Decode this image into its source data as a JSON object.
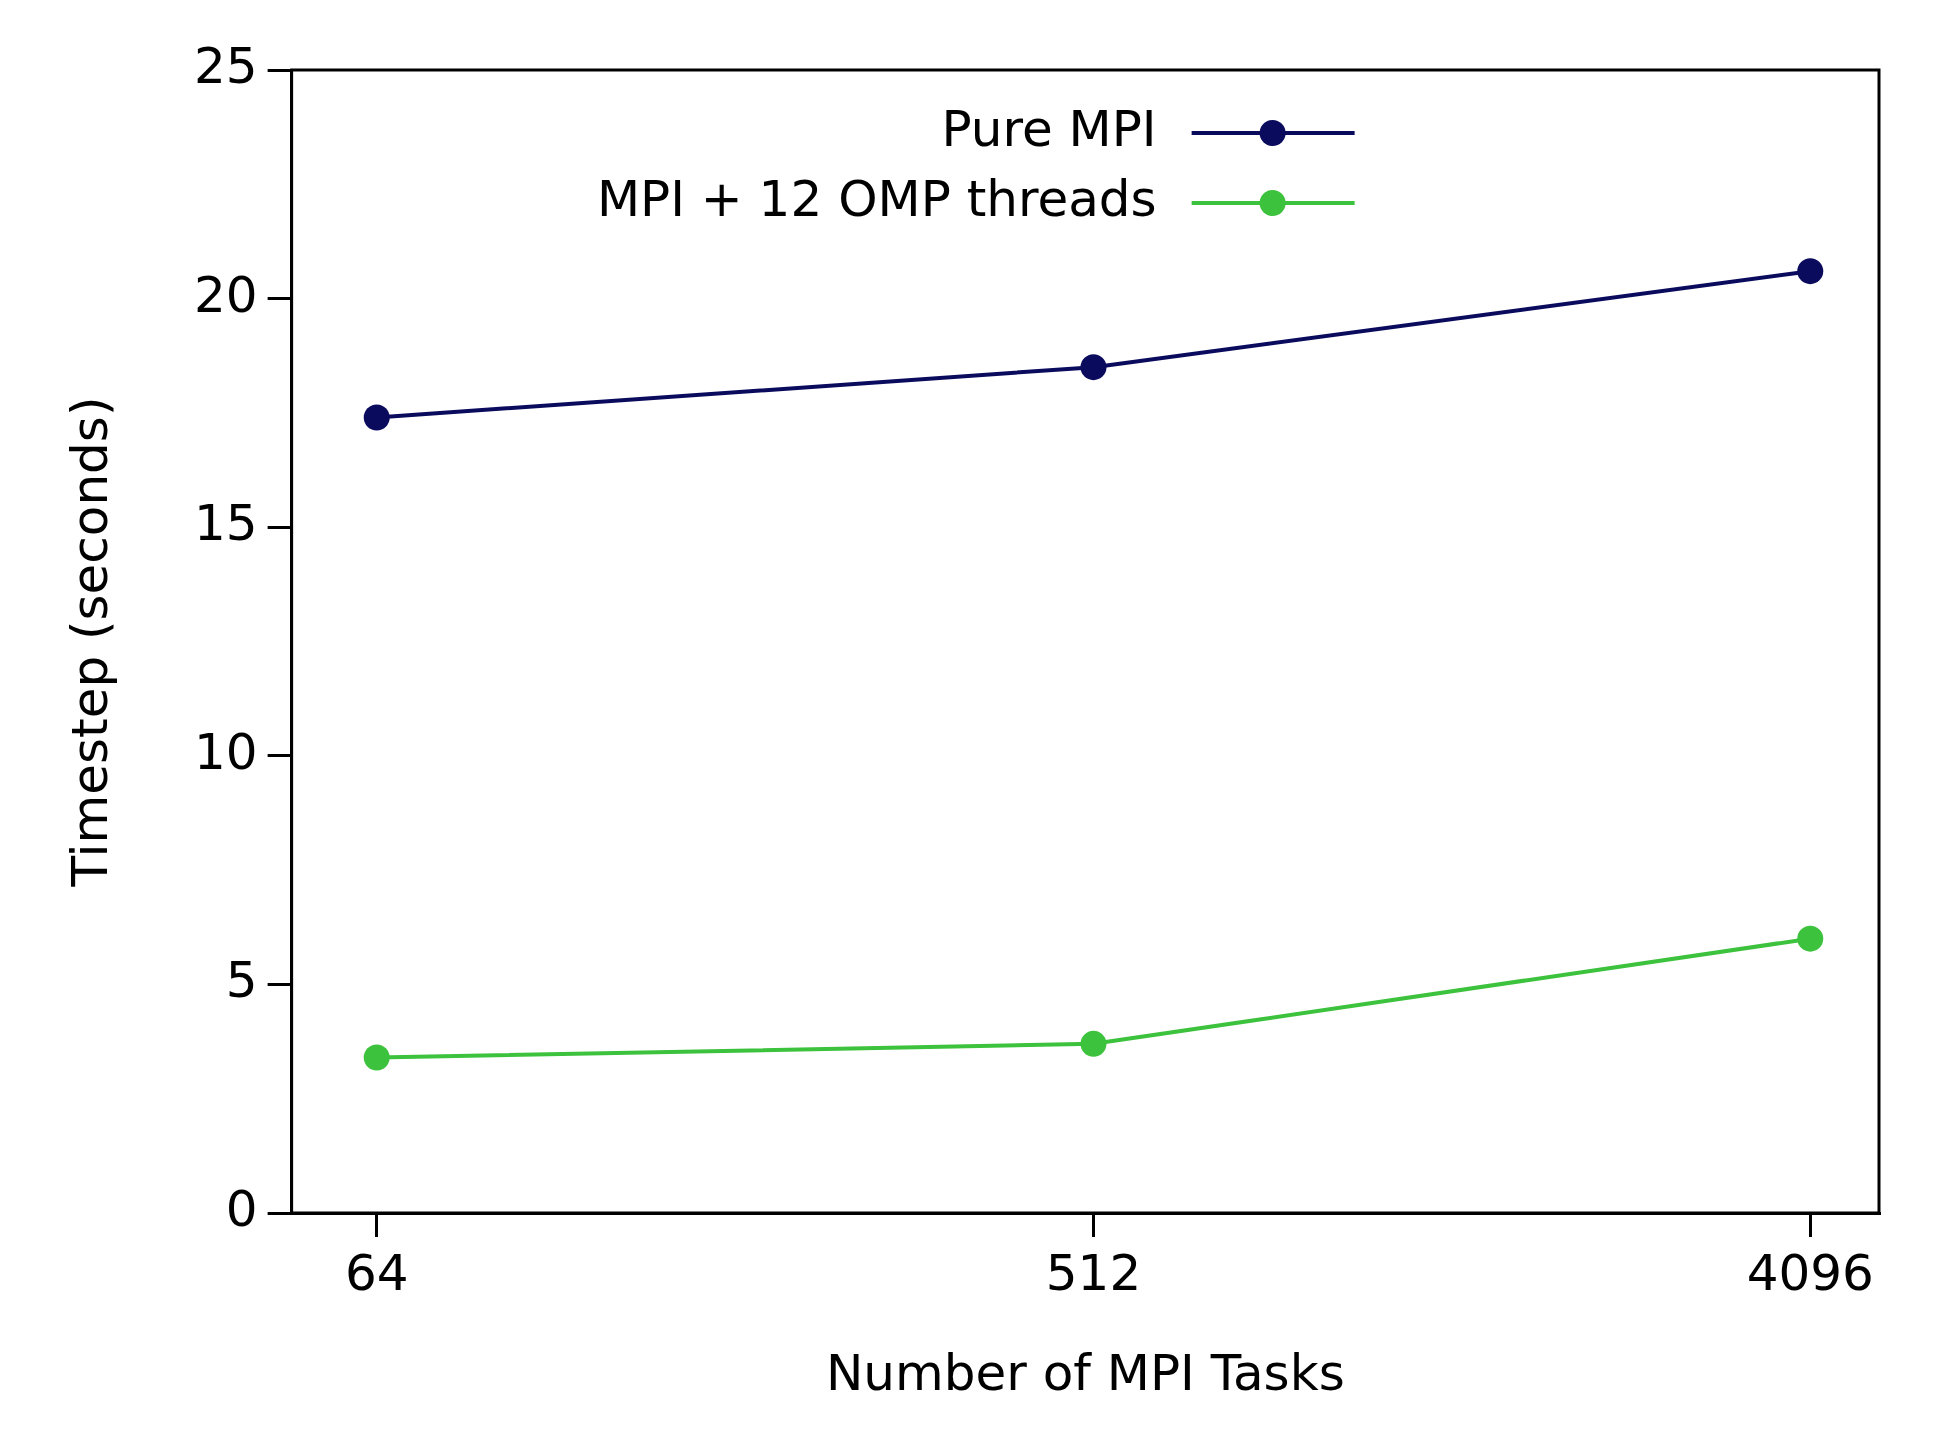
{
  "chart_data": {
    "type": "line",
    "xlabel": "Number of MPI Tasks",
    "ylabel": "Timestep (seconds)",
    "x": [
      64,
      512,
      4096
    ],
    "log": "x",
    "xlim": [
      50,
      5000
    ],
    "xticks": [
      64,
      512,
      4096
    ],
    "ylim": [
      0,
      25
    ],
    "yticks": [
      0,
      5,
      10,
      15,
      20,
      25
    ],
    "grid": false,
    "legend": "top",
    "marker": "circle",
    "line_style": "solid",
    "series": [
      {
        "name": "Pure MPI",
        "color": "#0b0b5e",
        "values": [
          17.4,
          18.5,
          20.6
        ]
      },
      {
        "name": "MPI + 12 OMP threads",
        "color": "#3cc23c",
        "values": [
          3.4,
          3.7,
          6.0
        ]
      }
    ]
  }
}
